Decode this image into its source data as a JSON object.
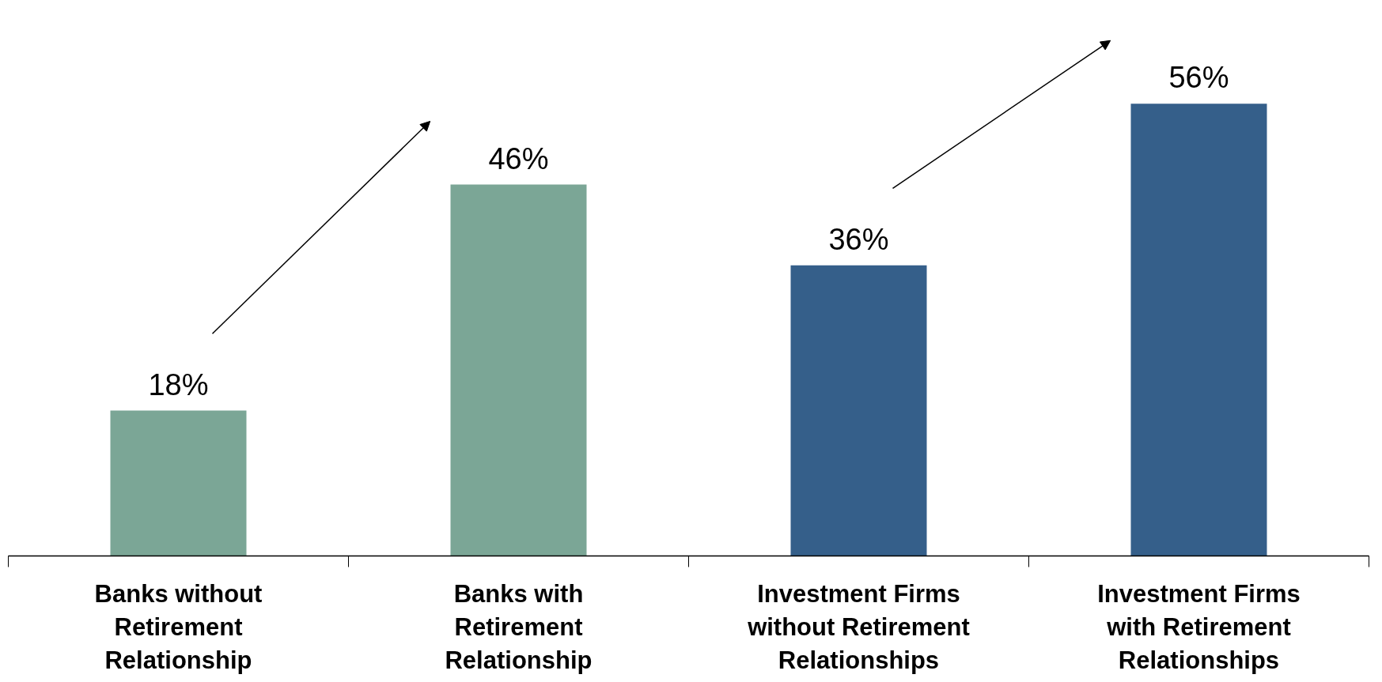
{
  "chart_data": {
    "type": "bar",
    "categories": [
      "Banks without Retirement Relationship",
      "Banks with Retirement Relationship",
      "Investment Firms without Retirement Relationships",
      "Investment Firms with Retirement Relationships"
    ],
    "values": [
      18,
      46,
      36,
      56
    ],
    "colors": [
      "#7ba696",
      "#7ba696",
      "#355f8a",
      "#355f8a"
    ],
    "value_labels": [
      "18%",
      "46%",
      "36%",
      "56%"
    ]
  }
}
